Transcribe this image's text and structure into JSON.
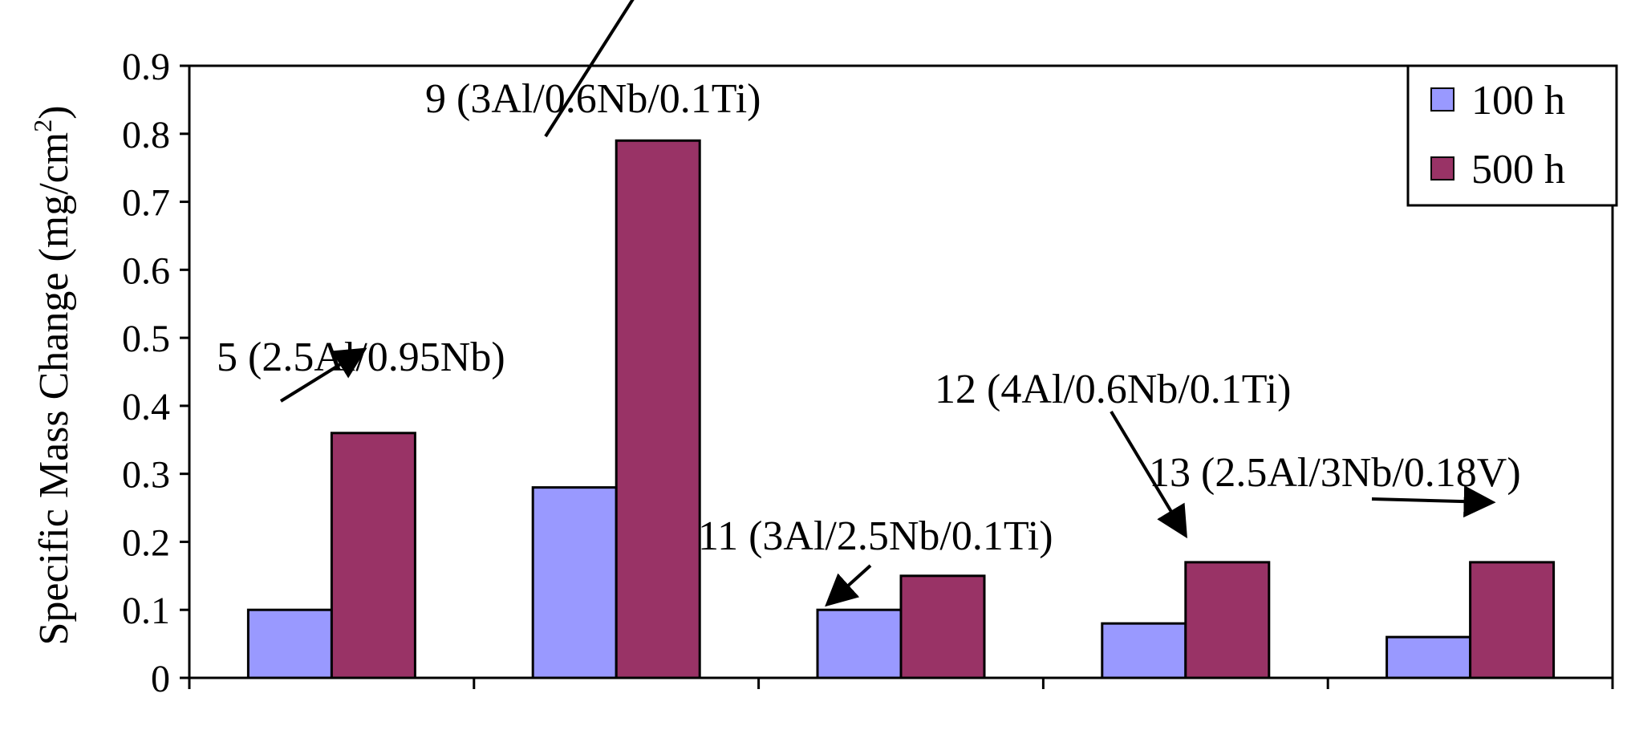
{
  "chart_data": {
    "type": "bar",
    "title": "",
    "xlabel": "",
    "ylabel": {
      "pre": "Specific Mass Change (mg/cm",
      "sup": "2",
      "post": ")"
    },
    "ylim": [
      0,
      0.9
    ],
    "yticks": [
      "0",
      "0.1",
      "0.2",
      "0.3",
      "0.4",
      "0.5",
      "0.6",
      "0.7",
      "0.8",
      "0.9"
    ],
    "grid": false,
    "legend_position": "top-right",
    "categories": [
      "5",
      "9",
      "11",
      "12",
      "13"
    ],
    "series": [
      {
        "name": "100 h",
        "color": "#9999ff",
        "values": [
          0.1,
          0.28,
          0.1,
          0.08,
          0.06
        ]
      },
      {
        "name": "500 h",
        "color": "#993366",
        "values": [
          0.36,
          0.79,
          0.15,
          0.17,
          0.17
        ]
      }
    ],
    "annotations": [
      {
        "text": "5 (2.5Al/0.95Nb)",
        "category": 0
      },
      {
        "text": "9 (3Al/0.6Nb/0.1Ti)",
        "category": 1
      },
      {
        "text": "11 (3Al/2.5Nb/0.1Ti)",
        "category": 2
      },
      {
        "text": "12 (4Al/0.6Nb/0.1Ti)",
        "category": 3
      },
      {
        "text": "13 (2.5Al/3Nb/0.18V)",
        "category": 4
      }
    ]
  }
}
